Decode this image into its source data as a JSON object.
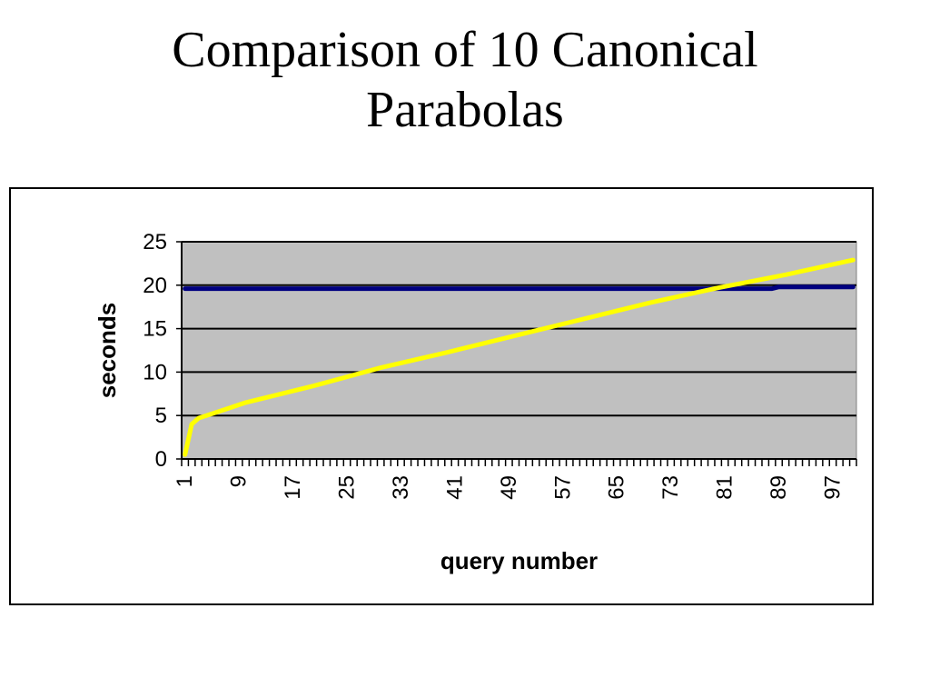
{
  "slide": {
    "title_line1": "Comparison of 10 Canonical",
    "title_line2": "Parabolas"
  },
  "chart_data": {
    "type": "line",
    "title": "",
    "xlabel": "query number",
    "ylabel": "seconds",
    "x_tick_labels": [
      "1",
      "9",
      "17",
      "25",
      "33",
      "41",
      "49",
      "57",
      "65",
      "73",
      "81",
      "89",
      "97"
    ],
    "xlim": [
      1,
      100
    ],
    "ylim": [
      0,
      25
    ],
    "y_ticks": [
      0,
      5,
      10,
      15,
      20,
      25
    ],
    "grid": "horizontal",
    "plot_background": "#c0c0c0",
    "legend": "none",
    "series": [
      {
        "color": "#000080",
        "x": [
          1,
          88,
          89,
          100
        ],
        "y": [
          19.6,
          19.6,
          19.8,
          19.8
        ]
      },
      {
        "color": "#ffff00",
        "x": [
          1,
          2,
          3,
          5,
          10,
          20,
          30,
          40,
          50,
          60,
          70,
          80,
          90,
          100
        ],
        "y": [
          0.5,
          4.0,
          4.7,
          5.2,
          6.5,
          8.4,
          10.5,
          12.3,
          14.2,
          16.1,
          18.0,
          19.7,
          21.2,
          22.9
        ]
      }
    ]
  }
}
